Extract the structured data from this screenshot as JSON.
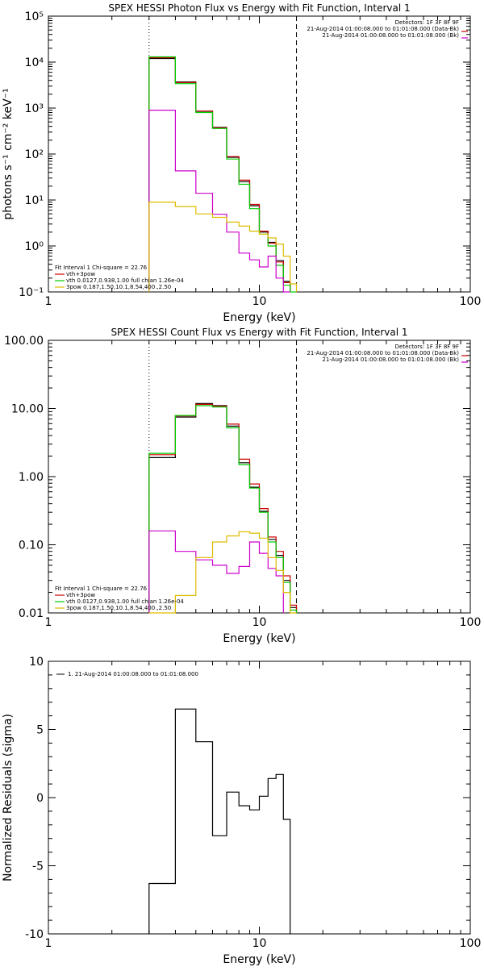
{
  "colors": {
    "axes": "#000000",
    "data": "#000000",
    "bk": "#cc0000",
    "total": "#00cc00",
    "thermal": "#cc00cc",
    "powerlaw": "#ddbb00"
  },
  "chart_data": [
    {
      "type": "line",
      "title": "SPEX HESSI Photon Flux vs Energy with Fit Function, Interval 1",
      "xlabel": "Energy (keV)",
      "ylabel": "photons s⁻¹ cm⁻² keV⁻¹",
      "xlog": true,
      "ylog": true,
      "xlim": [
        1,
        100
      ],
      "ylim": [
        0.1,
        100000
      ],
      "grid": false,
      "xticks": [
        "1",
        "10",
        "100"
      ],
      "yticks": [
        "10⁻¹",
        "10⁰",
        "10¹",
        "10²",
        "10³",
        "10⁴",
        "10⁵"
      ],
      "header": [
        "Detectors: 1F 3F 8F 9F",
        "21-Aug-2014 01:00:08.000 to 01:01:08.000 (Data-Bk)",
        "21-Aug-2014 01:00:08.000 to 01:01:08.000 (Bk)"
      ],
      "fit_text": [
        "Fit Interval 1   Chi-square = 22.76",
        "vth+3pow",
        "vth 0.0127,0.938,1.00  full chian 1.26e-04",
        "3pow 0.187,1.50,10.1,8.54,400.,2.50"
      ],
      "vlines": [
        {
          "x": 3,
          "style": "dotted"
        },
        {
          "x": 15,
          "style": "dashed"
        }
      ],
      "edges": [
        3,
        4,
        5,
        6,
        7,
        8,
        9,
        10,
        11,
        12,
        13,
        14,
        15,
        16
      ],
      "series": [
        {
          "name": "Data-Bk",
          "color": "data",
          "values": [
            12000,
            3700,
            850,
            380,
            85,
            25,
            7.5,
            2.0,
            1.2,
            0.48,
            0.17,
            null,
            null
          ]
        },
        {
          "name": "Bk",
          "color": "bk",
          "values": [
            12500,
            3600,
            860,
            370,
            88,
            27,
            8.0,
            2.1,
            1.15,
            0.45,
            0.16,
            null,
            null
          ]
        },
        {
          "name": "vth+3pow",
          "color": "total",
          "values": [
            13000,
            3400,
            800,
            360,
            78,
            22,
            6.5,
            1.8,
            1.0,
            0.38,
            0.14,
            0.1,
            null
          ]
        },
        {
          "name": "vth",
          "color": "thermal",
          "values": [
            900,
            43,
            14,
            4.9,
            2.0,
            0.7,
            0.5,
            0.35,
            0.6,
            0.2,
            0.1,
            null,
            null
          ]
        },
        {
          "name": "3pow",
          "color": "powerlaw",
          "values": [
            9.0,
            7.2,
            5.0,
            4.2,
            3.3,
            2.7,
            2.1,
            1.8,
            1.5,
            1.1,
            0.6,
            0.15,
            null
          ]
        }
      ]
    },
    {
      "type": "line",
      "title": "SPEX HESSI Count Flux vs Energy with Fit Function, Interval 1",
      "xlabel": "Energy (keV)",
      "ylabel": "",
      "xlog": true,
      "ylog": true,
      "xlim": [
        1,
        100
      ],
      "ylim": [
        0.01,
        100
      ],
      "grid": false,
      "xticks": [
        "1",
        "10",
        "100"
      ],
      "yticks": [
        "0.01",
        "0.10",
        "1.00",
        "10.00",
        "100.00"
      ],
      "header": [
        "Detectors: 1F 3F 8F 9F",
        "21-Aug-2014 01:00:08.000 to 01:01:08.000 (Data-Bk)",
        "21-Aug-2014 01:00:08.000 to 01:01:08.000 (Bk)"
      ],
      "fit_text": [
        "Fit Interval 1   Chi-square = 22.76",
        "vth+3pow",
        "vth 0.0127,0.938,1.00  full chian 1.26e-04",
        "3pow 0.187,1.50,10.1,8.54,400.,2.50"
      ],
      "vlines": [
        {
          "x": 3,
          "style": "dotted"
        },
        {
          "x": 15,
          "style": "dashed"
        }
      ],
      "edges": [
        3,
        4,
        5,
        6,
        7,
        8,
        9,
        10,
        11,
        12,
        13,
        14,
        15,
        16
      ],
      "series": [
        {
          "name": "Data-Bk",
          "color": "data",
          "values": [
            1.9,
            7.5,
            11.8,
            11.0,
            5.5,
            1.6,
            0.7,
            0.31,
            0.12,
            0.07,
            0.03,
            0.012,
            null
          ]
        },
        {
          "name": "Bk",
          "color": "bk",
          "values": [
            2.1,
            7.8,
            11.5,
            10.8,
            5.9,
            1.8,
            0.78,
            0.34,
            0.13,
            0.08,
            0.035,
            0.013,
            null
          ]
        },
        {
          "name": "vth+3pow",
          "color": "total",
          "values": [
            2.2,
            7.9,
            11.0,
            10.5,
            5.2,
            1.5,
            0.68,
            0.3,
            0.11,
            0.065,
            0.028,
            0.011,
            null
          ]
        },
        {
          "name": "vth",
          "color": "thermal",
          "values": [
            0.16,
            0.08,
            0.06,
            0.05,
            0.038,
            0.048,
            0.11,
            0.075,
            0.045,
            0.035,
            null,
            null,
            null
          ]
        },
        {
          "name": "3pow",
          "color": "powerlaw",
          "values": [
            0.01,
            0.018,
            0.065,
            0.11,
            0.135,
            0.155,
            0.148,
            0.125,
            0.065,
            0.042,
            0.02,
            0.01,
            null
          ]
        }
      ]
    },
    {
      "type": "line",
      "title": "",
      "xlabel": "Energy (keV)",
      "ylabel": "Normalized Residuals (sigma)",
      "xlog": true,
      "ylog": false,
      "xlim": [
        1,
        100
      ],
      "ylim": [
        -10,
        10
      ],
      "grid": false,
      "xticks": [
        "1",
        "10",
        "100"
      ],
      "yticks": [
        "-10",
        "-5",
        "0",
        "5",
        "10"
      ],
      "legend": "1. 21-Aug-2014 01:00:08.000 to 01:01:08.000",
      "edges": [
        3,
        4,
        5,
        6,
        7,
        8,
        9,
        10,
        11,
        12,
        13,
        14,
        15
      ],
      "series": [
        {
          "name": "1. 21-Aug-2014 01:00:08.000 to 01:01:08.000",
          "color": "data",
          "values": [
            -6.3,
            6.5,
            4.1,
            -2.8,
            0.4,
            -0.6,
            -0.9,
            0.1,
            1.4,
            1.7,
            -1.6,
            null
          ]
        }
      ]
    }
  ]
}
